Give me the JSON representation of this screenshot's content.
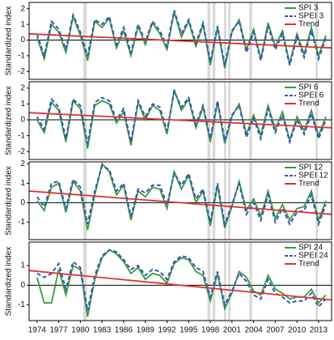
{
  "shaded_periods": [
    [
      1980.4,
      1980.9
    ],
    [
      1997.6,
      1998.0
    ],
    [
      1998.3,
      1998.7
    ],
    [
      1999.9,
      2000.2
    ],
    [
      2000.5,
      2000.8
    ],
    [
      2003.4,
      2003.8
    ],
    [
      2012.6,
      2012.9
    ]
  ],
  "chart_data": [
    {
      "type": "line",
      "ylabel": "Standardized index",
      "xlim": [
        1972.9,
        2014.8
      ],
      "ylim": [
        -2.5,
        2.4
      ],
      "yticks": [
        -2,
        -1,
        0,
        1,
        2
      ],
      "x": [
        1974,
        1975,
        1976,
        1977,
        1978,
        1979,
        1980,
        1981,
        1982,
        1983,
        1984,
        1985,
        1986,
        1987,
        1988,
        1989,
        1990,
        1991,
        1992,
        1993,
        1994,
        1995,
        1996,
        1997,
        1998,
        1999,
        2000,
        2001,
        2002,
        2003,
        2004,
        2005,
        2006,
        2007,
        2008,
        2009,
        2010,
        2011,
        2012,
        2013,
        2014
      ],
      "series": [
        {
          "name": "SPI 3",
          "color": "#3a9a3a",
          "dash": false,
          "values": [
            0.2,
            -1.2,
            1.0,
            0.5,
            -0.8,
            1.5,
            0.3,
            -1.3,
            1.2,
            0.8,
            1.4,
            -0.5,
            0.6,
            -1.0,
            0.9,
            -0.3,
            1.1,
            0.4,
            -0.6,
            1.8,
            0.2,
            1.2,
            -0.4,
            1.0,
            -1.6,
            0.8,
            -1.8,
            0.5,
            1.3,
            -0.6,
            0.7,
            -1.2,
            1.1,
            -0.4,
            0.6,
            -1.5,
            0.4,
            -0.9,
            0.8,
            -1.0,
            0.3
          ]
        },
        {
          "name": "SPEI 3",
          "color": "#3355bb",
          "dash": true,
          "values": [
            0.4,
            -1.0,
            1.2,
            0.7,
            -0.6,
            1.6,
            0.5,
            -1.0,
            1.3,
            1.0,
            1.5,
            -0.3,
            0.8,
            -0.8,
            1.0,
            -0.1,
            1.2,
            0.6,
            -0.4,
            1.9,
            0.4,
            1.3,
            -0.2,
            1.1,
            -1.4,
            0.9,
            -1.6,
            0.6,
            1.2,
            -0.8,
            0.5,
            -1.3,
            0.9,
            -0.6,
            0.4,
            -1.6,
            0.2,
            -1.1,
            0.6,
            -1.2,
            0.1
          ]
        },
        {
          "name": "Trend",
          "color": "#e03030",
          "dash": false,
          "x": [
            1972.9,
            2014.8
          ],
          "values": [
            0.4,
            -0.5
          ]
        }
      ]
    },
    {
      "type": "line",
      "ylabel": "Standardized index",
      "xlim": [
        1972.9,
        2014.8
      ],
      "ylim": [
        -2.5,
        2.4
      ],
      "yticks": [
        -2,
        -1,
        0,
        1,
        2
      ],
      "x": [
        1974,
        1975,
        1976,
        1977,
        1978,
        1979,
        1980,
        1981,
        1982,
        1983,
        1984,
        1985,
        1986,
        1987,
        1988,
        1989,
        1990,
        1991,
        1992,
        1993,
        1994,
        1995,
        1996,
        1997,
        1998,
        1999,
        2000,
        2001,
        2002,
        2003,
        2004,
        2005,
        2006,
        2007,
        2008,
        2009,
        2010,
        2011,
        2012,
        2013,
        2014
      ],
      "series": [
        {
          "name": "SPI 6",
          "color": "#3a9a3a",
          "dash": false,
          "values": [
            0.0,
            -0.8,
            1.1,
            0.6,
            -1.4,
            1.2,
            0.7,
            -1.8,
            0.9,
            1.2,
            1.0,
            -0.2,
            0.5,
            -1.6,
            1.1,
            0.0,
            0.9,
            0.6,
            -0.9,
            1.9,
            0.6,
            1.3,
            -0.5,
            0.8,
            -1.4,
            1.1,
            -1.5,
            0.2,
            1.0,
            -0.9,
            0.3,
            -1.0,
            0.9,
            -0.6,
            0.5,
            -1.3,
            0.2,
            -0.7,
            0.6,
            -1.0,
            0.2
          ]
        },
        {
          "name": "SPEI 6",
          "color": "#3355bb",
          "dash": true,
          "values": [
            0.2,
            -0.6,
            1.3,
            0.8,
            -1.2,
            1.3,
            0.9,
            -1.5,
            1.1,
            1.4,
            1.2,
            0.0,
            0.7,
            -1.4,
            1.2,
            0.2,
            1.0,
            0.8,
            -0.7,
            1.8,
            0.8,
            1.4,
            -0.3,
            0.9,
            -1.2,
            1.2,
            -1.3,
            0.3,
            0.9,
            -1.1,
            0.1,
            -1.2,
            0.7,
            -0.8,
            0.3,
            -1.4,
            0.0,
            -0.9,
            0.4,
            -1.2,
            0.0
          ]
        },
        {
          "name": "Trend",
          "color": "#e03030",
          "dash": false,
          "x": [
            1972.9,
            2014.8
          ],
          "values": [
            0.45,
            -0.5
          ]
        }
      ]
    },
    {
      "type": "line",
      "ylabel": "Standardized index",
      "xlim": [
        1972.9,
        2014.8
      ],
      "ylim": [
        -1.9,
        2.1
      ],
      "yticks": [
        -1,
        0,
        1,
        2
      ],
      "x": [
        1974,
        1975,
        1976,
        1977,
        1978,
        1979,
        1980,
        1981,
        1982,
        1983,
        1984,
        1985,
        1986,
        1987,
        1988,
        1989,
        1990,
        1991,
        1992,
        1993,
        1994,
        1995,
        1996,
        1997,
        1998,
        1999,
        2000,
        2001,
        2002,
        2003,
        2004,
        2005,
        2006,
        2007,
        2008,
        2009,
        2010,
        2011,
        2012,
        2013,
        2014
      ],
      "series": [
        {
          "name": "SPI 12",
          "color": "#3a9a3a",
          "dash": false,
          "values": [
            0.1,
            -0.4,
            0.8,
            1.0,
            -0.5,
            1.1,
            0.6,
            -1.4,
            0.4,
            2.0,
            1.6,
            0.4,
            0.9,
            -0.9,
            0.6,
            0.3,
            0.8,
            0.7,
            -0.3,
            1.6,
            0.7,
            1.4,
            0.0,
            0.6,
            -1.2,
            0.9,
            -1.3,
            -0.2,
            1.1,
            -0.4,
            0.2,
            -0.7,
            0.6,
            -0.8,
            -0.1,
            -0.9,
            -0.3,
            -0.2,
            0.6,
            -0.9,
            0.1
          ]
        },
        {
          "name": "SPEI 12",
          "color": "#3355bb",
          "dash": true,
          "values": [
            0.3,
            -0.2,
            1.0,
            1.1,
            -0.3,
            1.2,
            0.8,
            -1.1,
            0.6,
            1.9,
            1.7,
            0.6,
            1.0,
            -0.7,
            0.7,
            0.5,
            0.9,
            0.9,
            -0.1,
            1.5,
            0.9,
            1.5,
            0.2,
            0.7,
            -1.0,
            1.0,
            -1.1,
            -0.1,
            1.0,
            -0.6,
            0.0,
            -0.9,
            0.4,
            -1.0,
            -0.3,
            -1.1,
            -0.5,
            -0.4,
            0.4,
            -1.1,
            -0.1
          ]
        },
        {
          "name": "Trend",
          "color": "#e03030",
          "dash": false,
          "x": [
            1972.9,
            2014.8
          ],
          "values": [
            0.6,
            -0.6
          ]
        }
      ]
    },
    {
      "type": "line",
      "ylabel": "Standardized index",
      "xlim": [
        1972.9,
        2014.8
      ],
      "ylim": [
        -1.8,
        2.2
      ],
      "yticks": [
        -1,
        0,
        1
      ],
      "xticks": [
        1974,
        1977,
        1980,
        1983,
        1986,
        1989,
        1992,
        1995,
        1998,
        2001,
        2004,
        2007,
        2010,
        2013
      ],
      "x": [
        1974,
        1975,
        1976,
        1977,
        1978,
        1979,
        1980,
        1981,
        1982,
        1983,
        1984,
        1985,
        1986,
        1987,
        1988,
        1989,
        1990,
        1991,
        1992,
        1993,
        1994,
        1995,
        1996,
        1997,
        1998,
        1999,
        2000,
        2001,
        2002,
        2003,
        2004,
        2005,
        2006,
        2007,
        2008,
        2009,
        2010,
        2011,
        2012,
        2013,
        2014
      ],
      "series": [
        {
          "name": "SPI 24",
          "color": "#3a9a3a",
          "dash": false,
          "values": [
            0.4,
            -0.9,
            -0.9,
            0.8,
            -0.5,
            1.0,
            0.8,
            -1.6,
            0.3,
            1.4,
            1.8,
            1.6,
            1.2,
            0.6,
            0.9,
            0.3,
            0.6,
            0.5,
            0.1,
            1.1,
            1.4,
            1.3,
            0.7,
            0.5,
            -0.8,
            0.6,
            -1.2,
            -0.4,
            0.7,
            0.4,
            -0.3,
            -0.5,
            0.5,
            -0.2,
            -0.4,
            -0.7,
            -0.6,
            -0.6,
            -0.2,
            -0.9,
            -0.5
          ]
        },
        {
          "name": "SPEI 24",
          "color": "#3355bb",
          "dash": true,
          "values": [
            0.6,
            0.4,
            0.6,
            1.1,
            -0.2,
            1.2,
            0.9,
            -1.3,
            0.5,
            1.5,
            1.8,
            1.7,
            1.3,
            0.8,
            1.0,
            0.5,
            0.8,
            0.7,
            0.3,
            1.2,
            1.5,
            1.4,
            0.9,
            0.7,
            -0.6,
            0.7,
            -1.0,
            -0.3,
            0.6,
            0.2,
            -0.5,
            -0.7,
            0.3,
            -0.4,
            -0.6,
            -0.9,
            -0.8,
            -0.8,
            -0.4,
            -1.1,
            -0.7
          ]
        },
        {
          "name": "Trend",
          "color": "#e03030",
          "dash": false,
          "x": [
            1972.9,
            2014.8
          ],
          "values": [
            0.75,
            -0.75
          ]
        }
      ]
    }
  ]
}
